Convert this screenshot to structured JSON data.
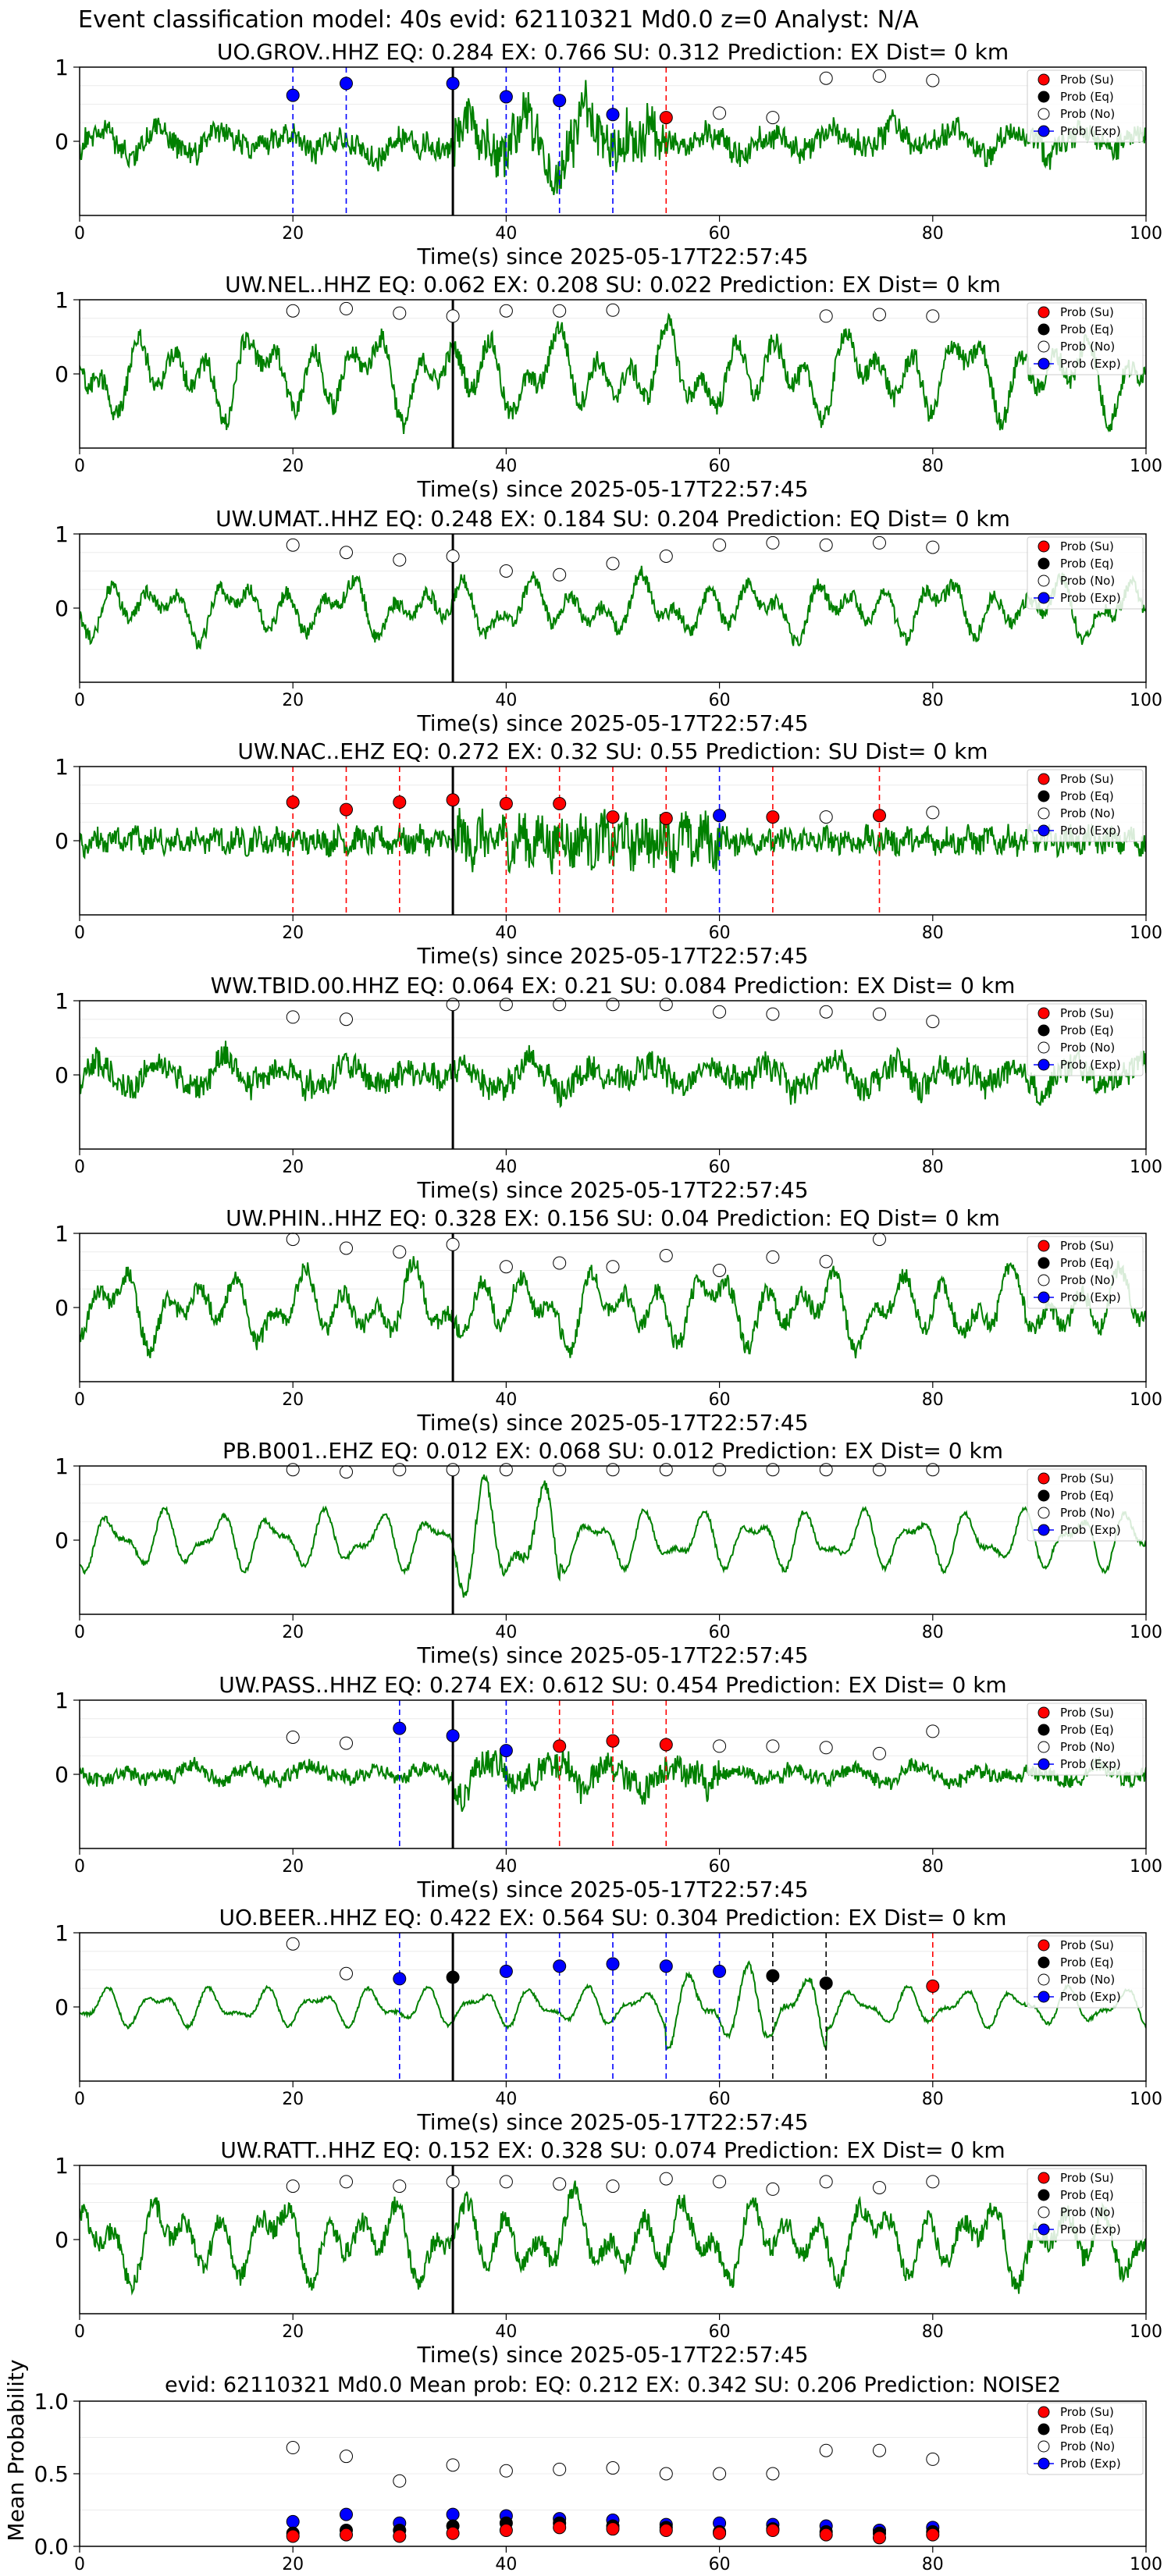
{
  "figure": {
    "suptitle": "Event classification model: 40s evid: 62110321 Md0.0 z=0 Analyst: N/A"
  },
  "legend_labels": [
    "Prob (Su)",
    "Prob (Eq)",
    "Prob (No)",
    "Prob (Exp)"
  ],
  "colors": {
    "su": "#ff0000",
    "eq": "#000000",
    "no": "#ffffff",
    "exp": "#0000ff",
    "waveform": "#008000",
    "pick": "#000000"
  },
  "chart_data": [
    {
      "type": "line",
      "station": "UO.GROV..HHZ",
      "title": "UO.GROV..HHZ   EQ: 0.284   EX: 0.766   SU: 0.312   Prediction: EX    Dist= 0 km",
      "xlabel": "Time(s) since 2025-05-17T22:57:45",
      "ylabel": "",
      "xlim": [
        0,
        100
      ],
      "ylim": [
        -1,
        1
      ],
      "xticks": [
        "0",
        "20",
        "40",
        "60",
        "80",
        "100"
      ],
      "yticks": [
        "0",
        "1"
      ],
      "pick_time": 35,
      "waveform": {
        "style": "noisy",
        "seed": 11,
        "amplitude": 0.5,
        "burst_start": 35,
        "burst_end": 55
      },
      "points": [
        {
          "t": 20,
          "p": 0.62,
          "cls": "exp"
        },
        {
          "t": 25,
          "p": 0.78,
          "cls": "exp"
        },
        {
          "t": 35,
          "p": 0.78,
          "cls": "exp"
        },
        {
          "t": 40,
          "p": 0.6,
          "cls": "exp"
        },
        {
          "t": 45,
          "p": 0.55,
          "cls": "exp"
        },
        {
          "t": 50,
          "p": 0.36,
          "cls": "exp"
        },
        {
          "t": 55,
          "p": 0.32,
          "cls": "su"
        },
        {
          "t": 60,
          "p": 0.38,
          "cls": "no"
        },
        {
          "t": 65,
          "p": 0.32,
          "cls": "no"
        },
        {
          "t": 70,
          "p": 0.85,
          "cls": "no"
        },
        {
          "t": 75,
          "p": 0.88,
          "cls": "no"
        },
        {
          "t": 80,
          "p": 0.82,
          "cls": "no"
        }
      ]
    },
    {
      "type": "line",
      "station": "UW.NEL..HHZ",
      "title": "UW.NEL..HHZ   EQ: 0.062   EX: 0.208   SU: 0.022   Prediction: EX    Dist= 0 km",
      "xlabel": "Time(s) since 2025-05-17T22:57:45",
      "ylabel": "",
      "xlim": [
        0,
        100
      ],
      "ylim": [
        -1,
        1
      ],
      "xticks": [
        "0",
        "20",
        "40",
        "60",
        "80",
        "100"
      ],
      "yticks": [
        "0",
        "1"
      ],
      "pick_time": 35,
      "waveform": {
        "style": "mixed",
        "seed": 23,
        "amplitude": 0.8,
        "burst_start": 0,
        "burst_end": 0
      },
      "points": [
        {
          "t": 20,
          "p": 0.85,
          "cls": "no"
        },
        {
          "t": 25,
          "p": 0.88,
          "cls": "no"
        },
        {
          "t": 30,
          "p": 0.82,
          "cls": "no"
        },
        {
          "t": 35,
          "p": 0.78,
          "cls": "no"
        },
        {
          "t": 40,
          "p": 0.85,
          "cls": "no"
        },
        {
          "t": 45,
          "p": 0.85,
          "cls": "no"
        },
        {
          "t": 50,
          "p": 0.86,
          "cls": "no"
        },
        {
          "t": 70,
          "p": 0.78,
          "cls": "no"
        },
        {
          "t": 75,
          "p": 0.8,
          "cls": "no"
        },
        {
          "t": 80,
          "p": 0.78,
          "cls": "no"
        }
      ]
    },
    {
      "type": "line",
      "station": "UW.UMAT..HHZ",
      "title": "UW.UMAT..HHZ   EQ: 0.248   EX: 0.184   SU: 0.204   Prediction: EQ    Dist= 0 km",
      "xlabel": "Time(s) since 2025-05-17T22:57:45",
      "ylabel": "",
      "xlim": [
        0,
        100
      ],
      "ylim": [
        -1,
        1
      ],
      "xticks": [
        "0",
        "20",
        "40",
        "60",
        "80",
        "100"
      ],
      "yticks": [
        "0",
        "1"
      ],
      "pick_time": 35,
      "waveform": {
        "style": "mixed",
        "seed": 37,
        "amplitude": 0.55,
        "burst_start": 0,
        "burst_end": 0
      },
      "points": [
        {
          "t": 20,
          "p": 0.85,
          "cls": "no"
        },
        {
          "t": 25,
          "p": 0.75,
          "cls": "no"
        },
        {
          "t": 30,
          "p": 0.65,
          "cls": "no"
        },
        {
          "t": 35,
          "p": 0.7,
          "cls": "no"
        },
        {
          "t": 40,
          "p": 0.5,
          "cls": "no"
        },
        {
          "t": 45,
          "p": 0.45,
          "cls": "no"
        },
        {
          "t": 50,
          "p": 0.6,
          "cls": "no"
        },
        {
          "t": 55,
          "p": 0.7,
          "cls": "no"
        },
        {
          "t": 60,
          "p": 0.85,
          "cls": "no"
        },
        {
          "t": 65,
          "p": 0.88,
          "cls": "no"
        },
        {
          "t": 70,
          "p": 0.85,
          "cls": "no"
        },
        {
          "t": 75,
          "p": 0.88,
          "cls": "no"
        },
        {
          "t": 80,
          "p": 0.82,
          "cls": "no"
        }
      ]
    },
    {
      "type": "line",
      "station": "UW.NAC..EHZ",
      "title": "UW.NAC..EHZ   EQ: 0.272   EX: 0.32   SU: 0.55   Prediction: SU    Dist= 0 km",
      "xlabel": "Time(s) since 2025-05-17T22:57:45",
      "ylabel": "",
      "xlim": [
        0,
        100
      ],
      "ylim": [
        -1,
        1
      ],
      "xticks": [
        "0",
        "20",
        "40",
        "60",
        "80",
        "100"
      ],
      "yticks": [
        "0",
        "1"
      ],
      "pick_time": 35,
      "waveform": {
        "style": "dense",
        "seed": 41,
        "amplitude": 0.35,
        "burst_start": 35,
        "burst_end": 60
      },
      "points": [
        {
          "t": 20,
          "p": 0.52,
          "cls": "su"
        },
        {
          "t": 25,
          "p": 0.42,
          "cls": "su"
        },
        {
          "t": 30,
          "p": 0.52,
          "cls": "su"
        },
        {
          "t": 35,
          "p": 0.55,
          "cls": "su"
        },
        {
          "t": 40,
          "p": 0.5,
          "cls": "su"
        },
        {
          "t": 45,
          "p": 0.5,
          "cls": "su"
        },
        {
          "t": 50,
          "p": 0.32,
          "cls": "su"
        },
        {
          "t": 55,
          "p": 0.3,
          "cls": "su"
        },
        {
          "t": 60,
          "p": 0.34,
          "cls": "exp"
        },
        {
          "t": 65,
          "p": 0.32,
          "cls": "su"
        },
        {
          "t": 70,
          "p": 0.32,
          "cls": "no"
        },
        {
          "t": 75,
          "p": 0.34,
          "cls": "su"
        },
        {
          "t": 80,
          "p": 0.38,
          "cls": "no"
        }
      ]
    },
    {
      "type": "line",
      "station": "WW.TBID.00.HHZ",
      "title": "WW.TBID.00.HHZ   EQ: 0.064   EX: 0.21   SU: 0.084   Prediction: EX    Dist= 0 km",
      "xlabel": "Time(s) since 2025-05-17T22:57:45",
      "ylabel": "",
      "xlim": [
        0,
        100
      ],
      "ylim": [
        -1,
        1
      ],
      "xticks": [
        "0",
        "20",
        "40",
        "60",
        "80",
        "100"
      ],
      "yticks": [
        "0",
        "1"
      ],
      "pick_time": 35,
      "waveform": {
        "style": "noisy",
        "seed": 53,
        "amplitude": 0.55,
        "burst_start": 0,
        "burst_end": 0
      },
      "points": [
        {
          "t": 20,
          "p": 0.78,
          "cls": "no"
        },
        {
          "t": 25,
          "p": 0.75,
          "cls": "no"
        },
        {
          "t": 35,
          "p": 0.95,
          "cls": "no"
        },
        {
          "t": 40,
          "p": 0.95,
          "cls": "no"
        },
        {
          "t": 45,
          "p": 0.95,
          "cls": "no"
        },
        {
          "t": 50,
          "p": 0.95,
          "cls": "no"
        },
        {
          "t": 55,
          "p": 0.95,
          "cls": "no"
        },
        {
          "t": 60,
          "p": 0.85,
          "cls": "no"
        },
        {
          "t": 65,
          "p": 0.82,
          "cls": "no"
        },
        {
          "t": 70,
          "p": 0.85,
          "cls": "no"
        },
        {
          "t": 75,
          "p": 0.82,
          "cls": "no"
        },
        {
          "t": 80,
          "p": 0.72,
          "cls": "no"
        }
      ]
    },
    {
      "type": "line",
      "station": "UW.PHIN..HHZ",
      "title": "UW.PHIN..HHZ   EQ: 0.328   EX: 0.156   SU: 0.04   Prediction: EQ    Dist= 0 km",
      "xlabel": "Time(s) since 2025-05-17T22:57:45",
      "ylabel": "",
      "xlim": [
        0,
        100
      ],
      "ylim": [
        -1,
        1
      ],
      "xticks": [
        "0",
        "20",
        "40",
        "60",
        "80",
        "100"
      ],
      "yticks": [
        "0",
        "1"
      ],
      "pick_time": 35,
      "waveform": {
        "style": "mixed",
        "seed": 67,
        "amplitude": 0.7,
        "burst_start": 0,
        "burst_end": 0
      },
      "points": [
        {
          "t": 20,
          "p": 0.92,
          "cls": "no"
        },
        {
          "t": 25,
          "p": 0.8,
          "cls": "no"
        },
        {
          "t": 30,
          "p": 0.75,
          "cls": "no"
        },
        {
          "t": 35,
          "p": 0.85,
          "cls": "no"
        },
        {
          "t": 40,
          "p": 0.55,
          "cls": "no"
        },
        {
          "t": 45,
          "p": 0.6,
          "cls": "no"
        },
        {
          "t": 50,
          "p": 0.55,
          "cls": "no"
        },
        {
          "t": 55,
          "p": 0.7,
          "cls": "no"
        },
        {
          "t": 60,
          "p": 0.5,
          "cls": "no"
        },
        {
          "t": 65,
          "p": 0.68,
          "cls": "no"
        },
        {
          "t": 70,
          "p": 0.62,
          "cls": "no"
        },
        {
          "t": 75,
          "p": 0.92,
          "cls": "no"
        }
      ]
    },
    {
      "type": "line",
      "station": "PB.B001..EHZ",
      "title": "PB.B001..EHZ   EQ: 0.012   EX: 0.068   SU: 0.012   Prediction: EX    Dist= 0 km",
      "xlabel": "Time(s) since 2025-05-17T22:57:45",
      "ylabel": "",
      "xlim": [
        0,
        100
      ],
      "ylim": [
        -1,
        1
      ],
      "xticks": [
        "0",
        "20",
        "40",
        "60",
        "80",
        "100"
      ],
      "yticks": [
        "0",
        "1"
      ],
      "pick_time": 35,
      "waveform": {
        "style": "smooth",
        "seed": 79,
        "amplitude": 0.45,
        "burst_start": 35,
        "burst_end": 45
      },
      "points": [
        {
          "t": 20,
          "p": 0.95,
          "cls": "no"
        },
        {
          "t": 25,
          "p": 0.92,
          "cls": "no"
        },
        {
          "t": 30,
          "p": 0.95,
          "cls": "no"
        },
        {
          "t": 35,
          "p": 0.95,
          "cls": "no"
        },
        {
          "t": 40,
          "p": 0.95,
          "cls": "no"
        },
        {
          "t": 45,
          "p": 0.95,
          "cls": "no"
        },
        {
          "t": 50,
          "p": 0.95,
          "cls": "no"
        },
        {
          "t": 55,
          "p": 0.95,
          "cls": "no"
        },
        {
          "t": 60,
          "p": 0.95,
          "cls": "no"
        },
        {
          "t": 65,
          "p": 0.95,
          "cls": "no"
        },
        {
          "t": 70,
          "p": 0.95,
          "cls": "no"
        },
        {
          "t": 75,
          "p": 0.95,
          "cls": "no"
        },
        {
          "t": 80,
          "p": 0.95,
          "cls": "no"
        }
      ]
    },
    {
      "type": "line",
      "station": "UW.PASS..HHZ",
      "title": "UW.PASS..HHZ   EQ: 0.274   EX: 0.612   SU: 0.454   Prediction: EX    Dist= 0 km",
      "xlabel": "Time(s) since 2025-05-17T22:57:45",
      "ylabel": "",
      "xlim": [
        0,
        100
      ],
      "ylim": [
        -1,
        1
      ],
      "xticks": [
        "0",
        "20",
        "40",
        "60",
        "80",
        "100"
      ],
      "yticks": [
        "0",
        "1"
      ],
      "pick_time": 35,
      "waveform": {
        "style": "noisy",
        "seed": 83,
        "amplitude": 0.3,
        "burst_start": 35,
        "burst_end": 60
      },
      "points": [
        {
          "t": 20,
          "p": 0.5,
          "cls": "no"
        },
        {
          "t": 25,
          "p": 0.42,
          "cls": "no"
        },
        {
          "t": 30,
          "p": 0.62,
          "cls": "exp"
        },
        {
          "t": 35,
          "p": 0.52,
          "cls": "exp"
        },
        {
          "t": 40,
          "p": 0.32,
          "cls": "exp"
        },
        {
          "t": 45,
          "p": 0.38,
          "cls": "su"
        },
        {
          "t": 50,
          "p": 0.45,
          "cls": "su"
        },
        {
          "t": 55,
          "p": 0.4,
          "cls": "su"
        },
        {
          "t": 60,
          "p": 0.38,
          "cls": "no"
        },
        {
          "t": 65,
          "p": 0.38,
          "cls": "no"
        },
        {
          "t": 70,
          "p": 0.36,
          "cls": "no"
        },
        {
          "t": 75,
          "p": 0.28,
          "cls": "no"
        },
        {
          "t": 80,
          "p": 0.58,
          "cls": "no"
        }
      ]
    },
    {
      "type": "line",
      "station": "UO.BEER..HHZ",
      "title": "UO.BEER..HHZ   EQ: 0.422   EX: 0.564   SU: 0.304   Prediction: EX    Dist= 0 km",
      "xlabel": "Time(s) since 2025-05-17T22:57:45",
      "ylabel": "",
      "xlim": [
        0,
        100
      ],
      "ylim": [
        -1,
        1
      ],
      "xticks": [
        "0",
        "20",
        "40",
        "60",
        "80",
        "100"
      ],
      "yticks": [
        "0",
        "1"
      ],
      "pick_time": 35,
      "waveform": {
        "style": "smooth",
        "seed": 97,
        "amplitude": 0.3,
        "burst_start": 55,
        "burst_end": 70
      },
      "points": [
        {
          "t": 20,
          "p": 0.85,
          "cls": "no"
        },
        {
          "t": 25,
          "p": 0.45,
          "cls": "no"
        },
        {
          "t": 30,
          "p": 0.38,
          "cls": "exp"
        },
        {
          "t": 35,
          "p": 0.4,
          "cls": "eq"
        },
        {
          "t": 40,
          "p": 0.48,
          "cls": "exp"
        },
        {
          "t": 45,
          "p": 0.55,
          "cls": "exp"
        },
        {
          "t": 50,
          "p": 0.58,
          "cls": "exp"
        },
        {
          "t": 55,
          "p": 0.55,
          "cls": "exp"
        },
        {
          "t": 60,
          "p": 0.48,
          "cls": "exp"
        },
        {
          "t": 65,
          "p": 0.42,
          "cls": "eq"
        },
        {
          "t": 70,
          "p": 0.32,
          "cls": "eq"
        },
        {
          "t": 80,
          "p": 0.28,
          "cls": "su"
        }
      ]
    },
    {
      "type": "line",
      "station": "UW.RATT..HHZ",
      "title": "UW.RATT..HHZ   EQ: 0.152   EX: 0.328   SU: 0.074   Prediction: EX    Dist= 0 km",
      "xlabel": "Time(s) since 2025-05-17T22:57:45",
      "ylabel": "",
      "xlim": [
        0,
        100
      ],
      "ylim": [
        -1,
        1
      ],
      "xticks": [
        "0",
        "20",
        "40",
        "60",
        "80",
        "100"
      ],
      "yticks": [
        "0",
        "1"
      ],
      "pick_time": 35,
      "waveform": {
        "style": "mixed",
        "seed": 101,
        "amplitude": 0.75,
        "burst_start": 0,
        "burst_end": 0
      },
      "points": [
        {
          "t": 20,
          "p": 0.72,
          "cls": "no"
        },
        {
          "t": 25,
          "p": 0.78,
          "cls": "no"
        },
        {
          "t": 30,
          "p": 0.72,
          "cls": "no"
        },
        {
          "t": 35,
          "p": 0.78,
          "cls": "no"
        },
        {
          "t": 40,
          "p": 0.78,
          "cls": "no"
        },
        {
          "t": 45,
          "p": 0.75,
          "cls": "no"
        },
        {
          "t": 50,
          "p": 0.72,
          "cls": "no"
        },
        {
          "t": 55,
          "p": 0.82,
          "cls": "no"
        },
        {
          "t": 60,
          "p": 0.78,
          "cls": "no"
        },
        {
          "t": 65,
          "p": 0.68,
          "cls": "no"
        },
        {
          "t": 70,
          "p": 0.78,
          "cls": "no"
        },
        {
          "t": 75,
          "p": 0.7,
          "cls": "no"
        },
        {
          "t": 80,
          "p": 0.78,
          "cls": "no"
        }
      ]
    },
    {
      "type": "scatter",
      "station": "mean",
      "title": "evid: 62110321   Md0.0   Mean prob:   EQ: 0.212   EX: 0.342   SU: 0.206   Prediction: NOISE2",
      "xlabel": "",
      "ylabel": "Mean Probability",
      "xlim": [
        0,
        100
      ],
      "ylim": [
        0,
        1
      ],
      "xticks": [
        "0",
        "20",
        "40",
        "60",
        "80",
        "100"
      ],
      "yticks": [
        "0.0",
        "0.5",
        "1.0"
      ],
      "t": [
        20,
        25,
        30,
        35,
        40,
        45,
        50,
        55,
        60,
        65,
        70,
        75,
        80
      ],
      "series": [
        {
          "cls": "no",
          "values": [
            0.68,
            0.62,
            0.45,
            0.56,
            0.52,
            0.53,
            0.54,
            0.5,
            0.5,
            0.5,
            0.66,
            0.66,
            0.6
          ]
        },
        {
          "cls": "exp",
          "values": [
            0.17,
            0.22,
            0.16,
            0.22,
            0.21,
            0.19,
            0.18,
            0.15,
            0.16,
            0.15,
            0.14,
            0.11,
            0.13
          ]
        },
        {
          "cls": "eq",
          "values": [
            0.09,
            0.11,
            0.11,
            0.14,
            0.16,
            0.16,
            0.14,
            0.13,
            0.1,
            0.12,
            0.1,
            0.09,
            0.1
          ]
        },
        {
          "cls": "su",
          "values": [
            0.07,
            0.08,
            0.07,
            0.09,
            0.11,
            0.13,
            0.12,
            0.11,
            0.09,
            0.11,
            0.08,
            0.06,
            0.08
          ]
        }
      ]
    }
  ]
}
